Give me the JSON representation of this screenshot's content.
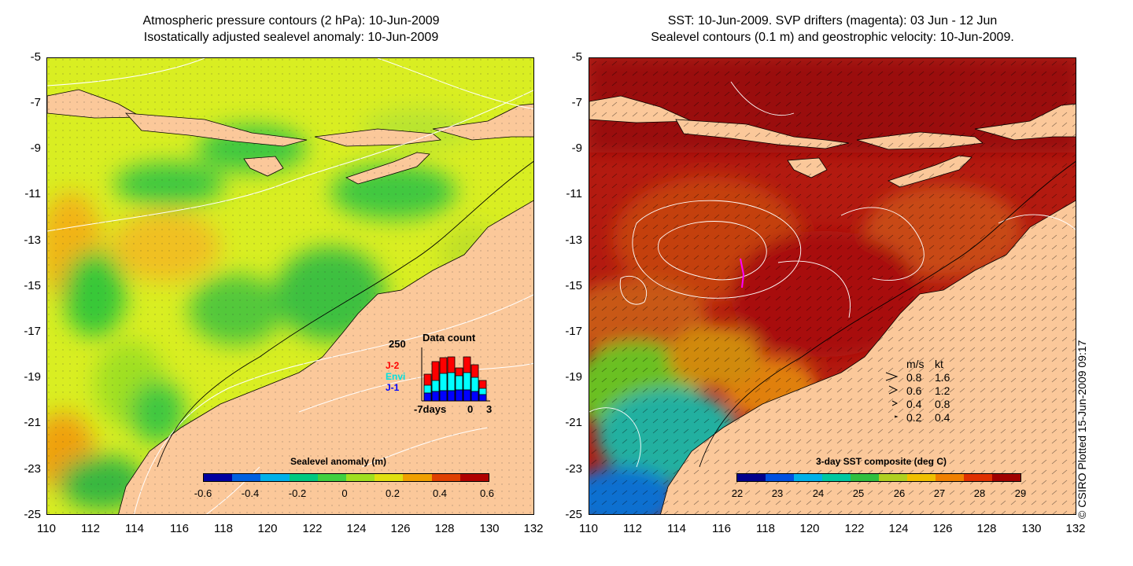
{
  "left_panel": {
    "title_line1": "Atmospheric pressure contours (2 hPa): 10-Jun-2009",
    "title_line2": "Isostatically adjusted sealevel anomaly: 10-Jun-2009",
    "colorbar": {
      "label": "Sealevel anomaly (m)",
      "ticks": [
        "-0.6",
        "-0.4",
        "-0.2",
        "0",
        "0.2",
        "0.4",
        "0.6"
      ],
      "min": -0.6,
      "max": 0.6,
      "colors": [
        "#0000a0",
        "#0060e0",
        "#00b0e8",
        "#00c880",
        "#40d040",
        "#a0e020",
        "#e0e010",
        "#f0a000",
        "#e04000",
        "#b00000"
      ]
    },
    "data_count": {
      "title": "Data count",
      "ymax_label": "250",
      "x_labels": [
        "-7days",
        "0",
        "3"
      ],
      "series_labels": [
        "J-2",
        "Envi",
        "J-1"
      ],
      "series_colors": [
        "#ff0000",
        "#00ffff",
        "#0000ff"
      ]
    }
  },
  "right_panel": {
    "title_line1": "SST: 10-Jun-2009. SVP drifters (magenta): 03 Jun - 12 Jun",
    "title_line2": "Sealevel contours (0.1 m) and geostrophic velocity: 10-Jun-2009.",
    "colorbar": {
      "label": "3-day SST composite (deg C)",
      "ticks": [
        "22",
        "23",
        "24",
        "25",
        "26",
        "27",
        "28",
        "29"
      ],
      "min": 22,
      "max": 29,
      "colors": [
        "#00008c",
        "#0050e0",
        "#00b0e8",
        "#00c8a0",
        "#30c040",
        "#b0d020",
        "#f0c000",
        "#f08000",
        "#e03000",
        "#a00000"
      ]
    },
    "velocity_legend": {
      "header_ms": "m/s",
      "header_kt": "kt",
      "rows": [
        {
          "ms": "0.8",
          "kt": "1.6"
        },
        {
          "ms": "0.6",
          "kt": "1.2"
        },
        {
          "ms": "0.4",
          "kt": "0.8"
        },
        {
          "ms": "0.2",
          "kt": "0.4"
        }
      ]
    },
    "copyright": "© CSIRO Plotted 15-Jun-2009 09:17"
  },
  "axes": {
    "y_ticks": [
      "-5",
      "-7",
      "-9",
      "-11",
      "-13",
      "-15",
      "-17",
      "-19",
      "-21",
      "-23",
      "-25"
    ],
    "x_ticks": [
      "110",
      "112",
      "114",
      "116",
      "118",
      "120",
      "122",
      "124",
      "126",
      "128",
      "130",
      "132"
    ]
  },
  "colors": {
    "land": "#fbc89a",
    "left_base": "#d9ee22",
    "right_base": "#b31a10"
  }
}
